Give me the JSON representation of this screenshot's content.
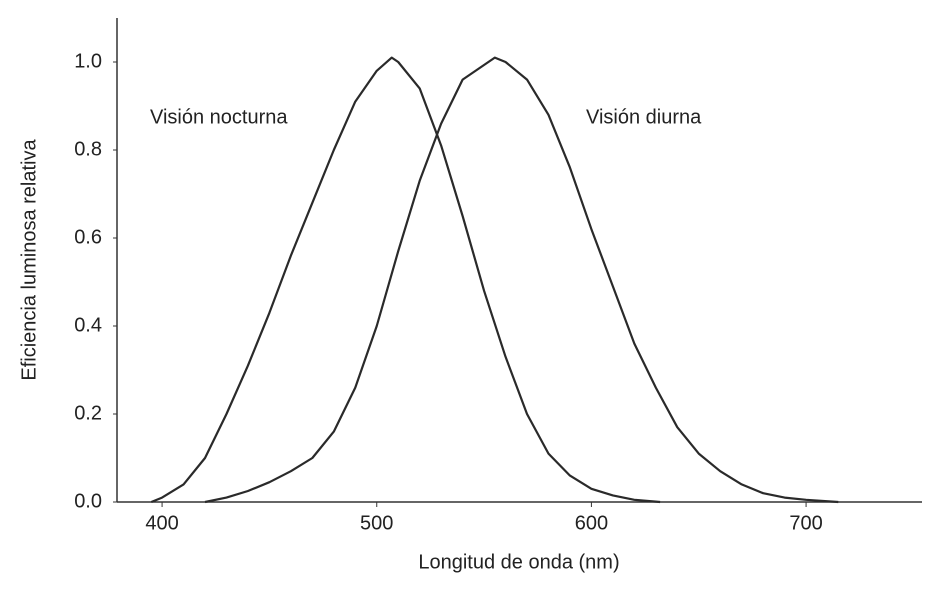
{
  "chart_data": {
    "type": "line",
    "xlabel": "Longitud de onda (nm)",
    "ylabel": "Eficiencia luminosa relativa",
    "xlim": [
      379,
      754
    ],
    "ylim": [
      0,
      1.1
    ],
    "xticks": [
      400,
      500,
      600,
      700
    ],
    "yticks": [
      {
        "value": 0,
        "label": "0.0"
      },
      0.2,
      0.4,
      0.6,
      0.8,
      {
        "value": 1,
        "label": "1.0"
      }
    ],
    "grid": false,
    "annotations": [
      "Visión nocturna",
      "Visión diurna"
    ],
    "series": [
      {
        "color": "#2a2a2a",
        "x": [
          395,
          400,
          410,
          420,
          430,
          440,
          450,
          460,
          470,
          480,
          490,
          500,
          507,
          510,
          520,
          530,
          540,
          550,
          560,
          570,
          580,
          590,
          600,
          610,
          620,
          632
        ],
        "values": [
          0,
          0.01,
          0.04,
          0.1,
          0.2,
          0.31,
          0.43,
          0.56,
          0.68,
          0.8,
          0.91,
          0.98,
          1.01,
          1.0,
          0.94,
          0.81,
          0.65,
          0.48,
          0.33,
          0.2,
          0.11,
          0.06,
          0.03,
          0.015,
          0.005,
          0
        ]
      },
      {
        "color": "#2a2a2a",
        "x": [
          420,
          430,
          440,
          450,
          460,
          470,
          480,
          490,
          500,
          510,
          520,
          530,
          540,
          555,
          560,
          570,
          580,
          590,
          600,
          610,
          620,
          630,
          640,
          650,
          660,
          670,
          680,
          690,
          700,
          715
        ],
        "values": [
          0,
          0.01,
          0.025,
          0.045,
          0.07,
          0.1,
          0.16,
          0.26,
          0.4,
          0.57,
          0.73,
          0.86,
          0.96,
          1.01,
          1.0,
          0.96,
          0.88,
          0.76,
          0.62,
          0.49,
          0.36,
          0.26,
          0.17,
          0.11,
          0.07,
          0.04,
          0.02,
          0.01,
          0.005,
          0
        ]
      }
    ]
  }
}
